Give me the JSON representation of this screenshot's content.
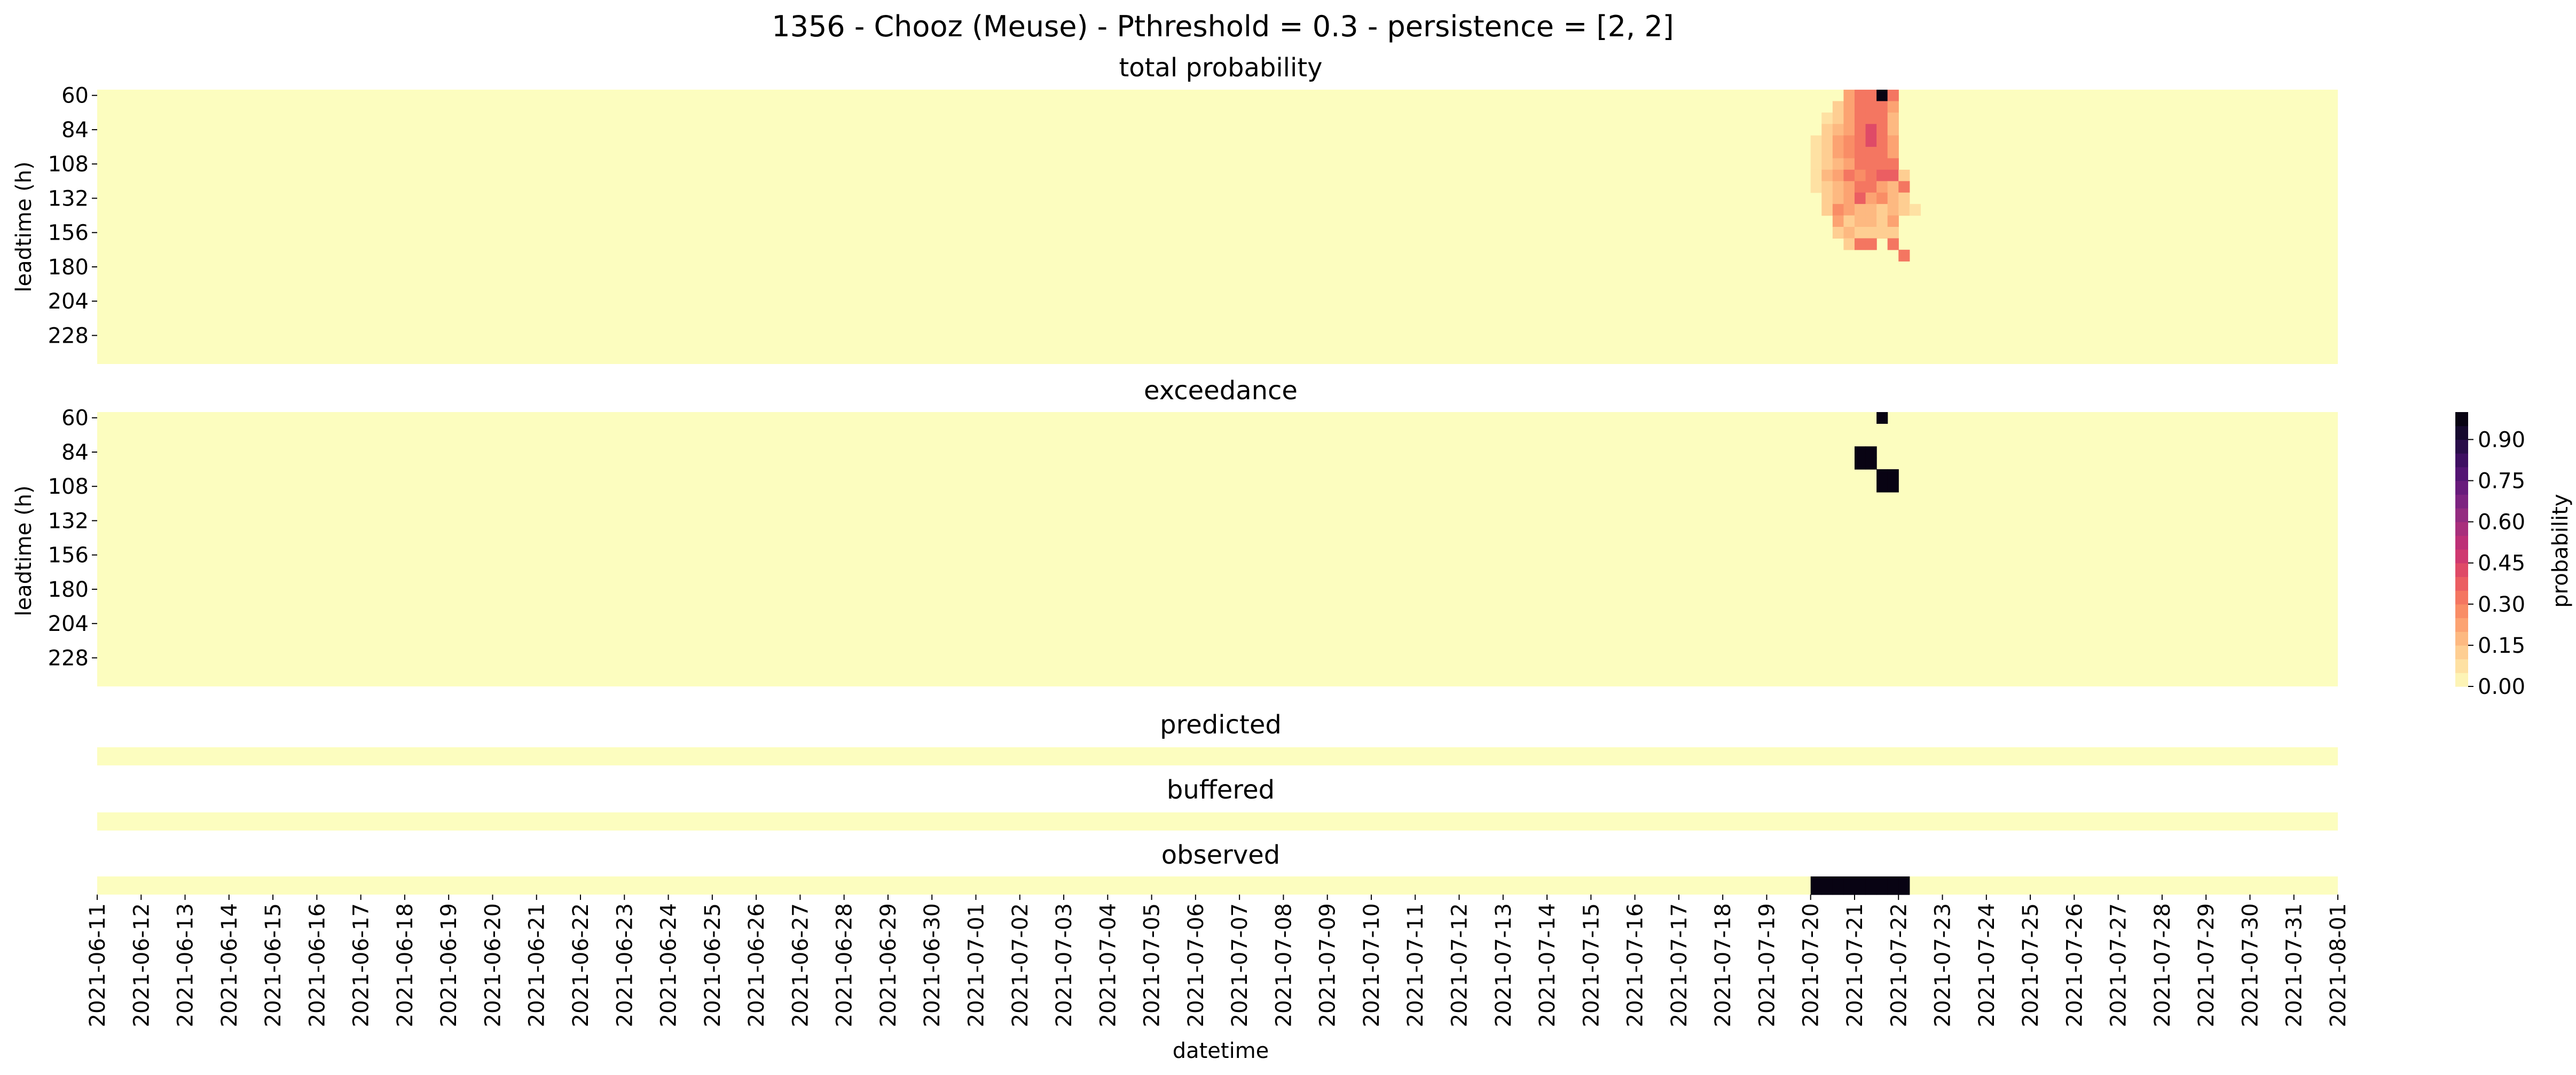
{
  "figure": {
    "suptitle": "1356 - Chooz (Meuse) - Pthreshold = 0.3 - persistence = [2, 2]"
  },
  "chart_data": [
    {
      "type": "heatmap",
      "id": "total",
      "title": "total probability",
      "xlabel": "",
      "ylabel": "leadtime (h)",
      "rows": 24,
      "row_start_h": 60,
      "row_step_h": 8,
      "y_tick_labels": [
        "60",
        "84",
        "108",
        "132",
        "156",
        "180",
        "204",
        "228"
      ],
      "columns": 204,
      "column_period_h": 6,
      "x_range": [
        "2021-06-11",
        "2021-08-01"
      ],
      "background_value": 0.0,
      "cells": [
        [
          0,
          159,
          0.2
        ],
        [
          0,
          160,
          0.3
        ],
        [
          0,
          161,
          0.3
        ],
        [
          0,
          162,
          0.95
        ],
        [
          0,
          163,
          0.3
        ],
        [
          1,
          158,
          0.1
        ],
        [
          1,
          159,
          0.2
        ],
        [
          1,
          160,
          0.3
        ],
        [
          1,
          161,
          0.3
        ],
        [
          1,
          162,
          0.3
        ],
        [
          1,
          163,
          0.2
        ],
        [
          2,
          157,
          0.05
        ],
        [
          2,
          158,
          0.1
        ],
        [
          2,
          159,
          0.2
        ],
        [
          2,
          160,
          0.3
        ],
        [
          2,
          161,
          0.3
        ],
        [
          2,
          162,
          0.3
        ],
        [
          2,
          163,
          0.15
        ],
        [
          3,
          157,
          0.1
        ],
        [
          3,
          158,
          0.15
        ],
        [
          3,
          159,
          0.2
        ],
        [
          3,
          160,
          0.3
        ],
        [
          3,
          161,
          0.4
        ],
        [
          3,
          162,
          0.3
        ],
        [
          3,
          163,
          0.15
        ],
        [
          4,
          156,
          0.05
        ],
        [
          4,
          157,
          0.1
        ],
        [
          4,
          158,
          0.2
        ],
        [
          4,
          159,
          0.25
        ],
        [
          4,
          160,
          0.3
        ],
        [
          4,
          161,
          0.4
        ],
        [
          4,
          162,
          0.3
        ],
        [
          4,
          163,
          0.2
        ],
        [
          5,
          156,
          0.05
        ],
        [
          5,
          157,
          0.1
        ],
        [
          5,
          158,
          0.2
        ],
        [
          5,
          159,
          0.25
        ],
        [
          5,
          160,
          0.3
        ],
        [
          5,
          161,
          0.3
        ],
        [
          5,
          162,
          0.3
        ],
        [
          5,
          163,
          0.2
        ],
        [
          6,
          156,
          0.05
        ],
        [
          6,
          157,
          0.1
        ],
        [
          6,
          158,
          0.15
        ],
        [
          6,
          159,
          0.2
        ],
        [
          6,
          160,
          0.3
        ],
        [
          6,
          161,
          0.3
        ],
        [
          6,
          162,
          0.3
        ],
        [
          6,
          163,
          0.3
        ],
        [
          7,
          156,
          0.05
        ],
        [
          7,
          157,
          0.15
        ],
        [
          7,
          158,
          0.2
        ],
        [
          7,
          159,
          0.3
        ],
        [
          7,
          160,
          0.25
        ],
        [
          7,
          161,
          0.3
        ],
        [
          7,
          162,
          0.35
        ],
        [
          7,
          163,
          0.35
        ],
        [
          7,
          164,
          0.1
        ],
        [
          8,
          156,
          0.05
        ],
        [
          8,
          157,
          0.1
        ],
        [
          8,
          158,
          0.15
        ],
        [
          8,
          159,
          0.2
        ],
        [
          8,
          160,
          0.3
        ],
        [
          8,
          161,
          0.3
        ],
        [
          8,
          162,
          0.2
        ],
        [
          8,
          163,
          0.15
        ],
        [
          8,
          164,
          0.3
        ],
        [
          9,
          157,
          0.1
        ],
        [
          9,
          158,
          0.15
        ],
        [
          9,
          159,
          0.2
        ],
        [
          9,
          160,
          0.35
        ],
        [
          9,
          161,
          0.2
        ],
        [
          9,
          162,
          0.25
        ],
        [
          9,
          163,
          0.15
        ],
        [
          9,
          164,
          0.1
        ],
        [
          10,
          157,
          0.1
        ],
        [
          10,
          158,
          0.25
        ],
        [
          10,
          159,
          0.2
        ],
        [
          10,
          160,
          0.15
        ],
        [
          10,
          161,
          0.15
        ],
        [
          10,
          162,
          0.1
        ],
        [
          10,
          163,
          0.15
        ],
        [
          10,
          164,
          0.1
        ],
        [
          10,
          165,
          0.05
        ],
        [
          11,
          158,
          0.2
        ],
        [
          11,
          159,
          0.1
        ],
        [
          11,
          160,
          0.15
        ],
        [
          11,
          161,
          0.15
        ],
        [
          11,
          162,
          0.1
        ],
        [
          11,
          163,
          0.2
        ],
        [
          12,
          158,
          0.1
        ],
        [
          12,
          159,
          0.15
        ],
        [
          12,
          160,
          0.1
        ],
        [
          12,
          161,
          0.1
        ],
        [
          12,
          162,
          0.1
        ],
        [
          12,
          163,
          0.1
        ],
        [
          13,
          159,
          0.1
        ],
        [
          13,
          160,
          0.3
        ],
        [
          13,
          161,
          0.3
        ],
        [
          13,
          163,
          0.3
        ],
        [
          14,
          164,
          0.3
        ]
      ]
    },
    {
      "type": "heatmap",
      "id": "exceedance",
      "title": "exceedance",
      "xlabel": "",
      "ylabel": "leadtime (h)",
      "rows": 24,
      "row_start_h": 60,
      "row_step_h": 8,
      "y_tick_labels": [
        "60",
        "84",
        "108",
        "132",
        "156",
        "180",
        "204",
        "228"
      ],
      "columns": 204,
      "x_range": [
        "2021-06-11",
        "2021-08-01"
      ],
      "background_value": 0.0,
      "cells": [
        [
          0,
          162,
          1.0
        ],
        [
          3,
          160,
          1.0
        ],
        [
          3,
          161,
          1.0
        ],
        [
          4,
          160,
          1.0
        ],
        [
          4,
          161,
          1.0
        ],
        [
          5,
          162,
          1.0
        ],
        [
          5,
          163,
          1.0
        ],
        [
          6,
          162,
          1.0
        ],
        [
          6,
          163,
          1.0
        ]
      ]
    },
    {
      "type": "heatmap",
      "id": "predicted",
      "title": "predicted",
      "rows": 1,
      "columns": 204,
      "background_value": 0.0,
      "cells": []
    },
    {
      "type": "heatmap",
      "id": "buffered",
      "title": "buffered",
      "rows": 1,
      "columns": 204,
      "background_value": 0.0,
      "cells": []
    },
    {
      "type": "heatmap",
      "id": "observed",
      "title": "observed",
      "xlabel": "datetime",
      "rows": 1,
      "columns": 204,
      "background_value": 0.0,
      "cells": [
        [
          0,
          156,
          1.0
        ],
        [
          0,
          157,
          1.0
        ],
        [
          0,
          158,
          1.0
        ],
        [
          0,
          159,
          1.0
        ],
        [
          0,
          160,
          1.0
        ],
        [
          0,
          161,
          1.0
        ],
        [
          0,
          162,
          1.0
        ],
        [
          0,
          163,
          1.0
        ],
        [
          0,
          164,
          1.0
        ]
      ],
      "x_tick_labels": [
        "2021-06-11",
        "2021-06-12",
        "2021-06-13",
        "2021-06-14",
        "2021-06-15",
        "2021-06-16",
        "2021-06-17",
        "2021-06-18",
        "2021-06-19",
        "2021-06-20",
        "2021-06-21",
        "2021-06-22",
        "2021-06-23",
        "2021-06-24",
        "2021-06-25",
        "2021-06-26",
        "2021-06-27",
        "2021-06-28",
        "2021-06-29",
        "2021-06-30",
        "2021-07-01",
        "2021-07-02",
        "2021-07-03",
        "2021-07-04",
        "2021-07-05",
        "2021-07-06",
        "2021-07-07",
        "2021-07-08",
        "2021-07-09",
        "2021-07-10",
        "2021-07-11",
        "2021-07-12",
        "2021-07-13",
        "2021-07-14",
        "2021-07-15",
        "2021-07-16",
        "2021-07-17",
        "2021-07-18",
        "2021-07-19",
        "2021-07-20",
        "2021-07-21",
        "2021-07-22",
        "2021-07-23",
        "2021-07-24",
        "2021-07-25",
        "2021-07-26",
        "2021-07-27",
        "2021-07-28",
        "2021-07-29",
        "2021-07-30",
        "2021-07-31",
        "2021-08-01"
      ]
    }
  ],
  "colorbar": {
    "label": "probability",
    "colormap": "magma_r",
    "range": [
      0,
      1
    ],
    "levels": 20,
    "tick_values": [
      0.0,
      0.15,
      0.3,
      0.45,
      0.6,
      0.75,
      0.9
    ],
    "tick_labels": [
      "0.00",
      "0.15",
      "0.30",
      "0.45",
      "0.60",
      "0.75",
      "0.90"
    ]
  },
  "colors": {
    "low": "#fcfdbf",
    "high": "#000004"
  }
}
